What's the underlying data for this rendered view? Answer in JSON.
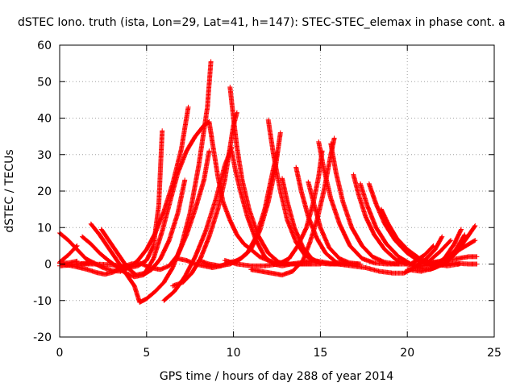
{
  "chart_data": {
    "type": "scatter",
    "title": "dSTEC Iono. truth (ista, Lon=29, Lat=41, h=147): STEC-STEC_elemax in phase cont. a",
    "xlabel": "GPS time / hours of day 288 of year 2014",
    "ylabel": "dSTEC  / TECUs",
    "xlim": [
      0,
      25
    ],
    "ylim": [
      -20,
      60
    ],
    "xticks": [
      0,
      5,
      10,
      15,
      20,
      25
    ],
    "yticks": [
      -20,
      -10,
      0,
      10,
      20,
      30,
      40,
      50,
      60
    ],
    "xtick_labels": [
      "0",
      "5",
      "10",
      "15",
      "20",
      "25"
    ],
    "ytick_labels": [
      "-20",
      "-10",
      "0",
      "10",
      "20",
      "30",
      "40",
      "50",
      "60"
    ],
    "grid": true,
    "marker": "+",
    "color": "#ff0000",
    "tracks": [
      [
        [
          0.0,
          8.5
        ],
        [
          0.5,
          6.5
        ],
        [
          1.0,
          4.0
        ],
        [
          1.5,
          1.5
        ],
        [
          2.0,
          0.2
        ],
        [
          2.5,
          -1.0
        ],
        [
          3.0,
          -1.8
        ],
        [
          3.5,
          -2.0
        ],
        [
          4.0,
          -1.0
        ],
        [
          4.5,
          1.0
        ],
        [
          5.0,
          4.0
        ],
        [
          5.5,
          8.5
        ],
        [
          6.0,
          14.5
        ],
        [
          6.5,
          22.0
        ],
        [
          7.0,
          31.5
        ],
        [
          7.4,
          43.0
        ]
      ],
      [
        [
          0.0,
          0.5
        ],
        [
          0.5,
          2.5
        ],
        [
          1.0,
          5.0
        ]
      ],
      [
        [
          0.0,
          -0.5
        ],
        [
          0.5,
          -0.3
        ],
        [
          1.0,
          0.0
        ],
        [
          1.5,
          0.2
        ],
        [
          2.0,
          0.3
        ]
      ],
      [
        [
          0.0,
          0.2
        ],
        [
          0.5,
          0.3
        ],
        [
          1.0,
          0.8
        ]
      ],
      [
        [
          1.3,
          7.5
        ],
        [
          1.8,
          5.5
        ],
        [
          2.3,
          3.0
        ],
        [
          2.8,
          1.0
        ],
        [
          3.3,
          -0.8
        ],
        [
          3.8,
          -2.5
        ],
        [
          4.3,
          -3.5
        ],
        [
          4.8,
          -3.0
        ],
        [
          5.3,
          -1.5
        ],
        [
          5.8,
          1.5
        ],
        [
          6.3,
          6.5
        ],
        [
          6.8,
          14.0
        ],
        [
          7.2,
          23.0
        ]
      ],
      [
        [
          1.8,
          11.0
        ],
        [
          2.3,
          8.0
        ],
        [
          2.8,
          4.5
        ],
        [
          3.3,
          1.0
        ],
        [
          3.8,
          -2.5
        ],
        [
          4.3,
          -6.0
        ],
        [
          4.6,
          -10.5
        ],
        [
          5.0,
          -9.5
        ],
        [
          5.5,
          -7.5
        ],
        [
          6.0,
          -5.0
        ],
        [
          6.5,
          -1.0
        ],
        [
          7.0,
          5.0
        ],
        [
          7.5,
          14.0
        ],
        [
          8.0,
          27.0
        ],
        [
          8.5,
          43.0
        ],
        [
          8.7,
          55.5
        ]
      ],
      [
        [
          0.2,
          0.0
        ],
        [
          1.0,
          -0.8
        ],
        [
          1.6,
          -1.5
        ],
        [
          2.1,
          -2.3
        ],
        [
          2.6,
          -2.8
        ],
        [
          3.1,
          -2.2
        ],
        [
          3.6,
          -0.8
        ],
        [
          4.1,
          0.0
        ],
        [
          4.6,
          0.3
        ],
        [
          5.2,
          -1.0
        ],
        [
          5.8,
          -1.5
        ],
        [
          6.3,
          -0.5
        ],
        [
          6.8,
          2.5
        ],
        [
          7.3,
          8.0
        ],
        [
          7.8,
          15.0
        ],
        [
          8.3,
          23.0
        ],
        [
          8.6,
          31.0
        ]
      ],
      [
        [
          2.4,
          9.5
        ],
        [
          2.9,
          6.0
        ],
        [
          3.4,
          2.5
        ],
        [
          3.9,
          -1.0
        ],
        [
          4.4,
          -3.0
        ],
        [
          4.9,
          -2.5
        ],
        [
          5.4,
          1.5
        ],
        [
          5.9,
          9.0
        ],
        [
          6.4,
          18.0
        ],
        [
          6.8,
          25.0
        ],
        [
          7.3,
          31.0
        ],
        [
          7.8,
          35.0
        ],
        [
          8.3,
          38.0
        ],
        [
          8.6,
          39.0
        ]
      ],
      [
        [
          1.0,
          0.0
        ],
        [
          2.0,
          0.0
        ],
        [
          3.0,
          -0.2
        ],
        [
          3.5,
          -0.5
        ],
        [
          4.0,
          -1.0
        ],
        [
          4.5,
          -0.5
        ],
        [
          5.0,
          1.0
        ],
        [
          5.4,
          5.0
        ],
        [
          5.7,
          16.0
        ],
        [
          5.9,
          36.5
        ]
      ],
      [
        [
          6.0,
          -10.0
        ],
        [
          6.6,
          -7.5
        ],
        [
          7.2,
          -3.5
        ],
        [
          7.8,
          2.0
        ],
        [
          8.4,
          9.0
        ],
        [
          9.0,
          18.0
        ],
        [
          9.5,
          27.0
        ],
        [
          9.9,
          32.0
        ]
      ],
      [
        [
          6.5,
          -6.0
        ],
        [
          7.1,
          -5.0
        ],
        [
          7.6,
          -2.5
        ],
        [
          8.1,
          1.5
        ],
        [
          8.6,
          7.5
        ],
        [
          9.1,
          15.0
        ],
        [
          9.5,
          23.0
        ],
        [
          9.8,
          32.0
        ],
        [
          10.0,
          38.0
        ],
        [
          10.2,
          41.5
        ]
      ],
      [
        [
          8.6,
          39.0
        ],
        [
          8.8,
          33.0
        ],
        [
          9.1,
          24.0
        ],
        [
          9.4,
          17.0
        ],
        [
          9.8,
          12.0
        ],
        [
          10.2,
          8.0
        ],
        [
          10.6,
          5.5
        ],
        [
          11.0,
          4.0
        ],
        [
          11.5,
          2.0
        ],
        [
          12.0,
          1.0
        ],
        [
          12.5,
          0.3
        ],
        [
          13.0,
          0.0
        ],
        [
          13.5,
          0.0
        ],
        [
          14.0,
          0.0
        ],
        [
          14.5,
          0.0
        ],
        [
          15.0,
          0.0
        ]
      ],
      [
        [
          9.8,
          48.5
        ],
        [
          10.0,
          40.0
        ],
        [
          10.2,
          32.0
        ],
        [
          10.5,
          23.0
        ],
        [
          10.9,
          15.0
        ],
        [
          11.4,
          8.0
        ],
        [
          12.0,
          3.0
        ],
        [
          12.6,
          0.5
        ],
        [
          13.2,
          0.0
        ],
        [
          13.8,
          0.0
        ],
        [
          14.4,
          0.0
        ]
      ],
      [
        [
          9.9,
          31.0
        ],
        [
          10.1,
          26.0
        ],
        [
          10.4,
          20.0
        ],
        [
          10.8,
          13.0
        ],
        [
          11.3,
          6.5
        ],
        [
          11.8,
          2.0
        ],
        [
          12.3,
          0.0
        ],
        [
          12.8,
          -0.5
        ],
        [
          13.3,
          0.0
        ],
        [
          14.0,
          0.5
        ],
        [
          14.6,
          1.0
        ]
      ],
      [
        [
          6.8,
          1.5
        ],
        [
          7.3,
          1.0
        ],
        [
          7.8,
          0.0
        ],
        [
          8.3,
          -0.5
        ],
        [
          8.8,
          -1.0
        ],
        [
          9.3,
          -0.5
        ],
        [
          9.8,
          0.5
        ],
        [
          10.3,
          1.0
        ],
        [
          10.8,
          3.0
        ],
        [
          11.3,
          7.5
        ],
        [
          11.8,
          15.0
        ],
        [
          12.2,
          24.0
        ],
        [
          12.5,
          30.5
        ]
      ],
      [
        [
          8.0,
          1.0
        ],
        [
          8.6,
          0.0
        ],
        [
          9.2,
          -0.5
        ],
        [
          9.8,
          0.0
        ],
        [
          10.4,
          1.5
        ],
        [
          11.0,
          4.0
        ],
        [
          11.5,
          9.0
        ],
        [
          12.0,
          17.0
        ],
        [
          12.4,
          26.0
        ],
        [
          12.7,
          36.0
        ]
      ],
      [
        [
          12.0,
          39.5
        ],
        [
          12.3,
          30.0
        ],
        [
          12.7,
          20.0
        ],
        [
          13.1,
          12.0
        ],
        [
          13.6,
          6.0
        ],
        [
          14.1,
          2.5
        ],
        [
          14.6,
          1.0
        ],
        [
          15.2,
          0.5
        ],
        [
          15.8,
          0.0
        ],
        [
          16.4,
          0.0
        ]
      ],
      [
        [
          12.8,
          23.5
        ],
        [
          13.1,
          17.0
        ],
        [
          13.5,
          10.0
        ],
        [
          14.0,
          4.5
        ],
        [
          14.5,
          1.5
        ],
        [
          15.0,
          0.2
        ],
        [
          15.5,
          0.0
        ],
        [
          16.0,
          0.0
        ]
      ],
      [
        [
          11.0,
          -1.5
        ],
        [
          11.6,
          -2.0
        ],
        [
          12.2,
          -2.5
        ],
        [
          12.8,
          -3.0
        ],
        [
          13.4,
          -2.0
        ],
        [
          14.0,
          1.0
        ],
        [
          14.4,
          6.0
        ],
        [
          14.8,
          12.0
        ],
        [
          15.2,
          20.0
        ],
        [
          15.6,
          30.0
        ],
        [
          15.8,
          34.5
        ]
      ],
      [
        [
          13.6,
          26.5
        ],
        [
          13.9,
          20.0
        ],
        [
          14.3,
          13.0
        ],
        [
          14.8,
          7.0
        ],
        [
          15.3,
          3.0
        ],
        [
          15.9,
          0.5
        ],
        [
          16.5,
          0.0
        ],
        [
          17.1,
          0.0
        ]
      ],
      [
        [
          14.3,
          22.5
        ],
        [
          14.6,
          17.0
        ],
        [
          15.0,
          10.0
        ],
        [
          15.5,
          4.5
        ],
        [
          16.1,
          1.5
        ],
        [
          16.7,
          0.3
        ],
        [
          17.3,
          0.0
        ]
      ],
      [
        [
          9.5,
          1.0
        ],
        [
          10.2,
          0.0
        ],
        [
          11.0,
          -0.5
        ],
        [
          11.8,
          -0.5
        ],
        [
          12.6,
          0.0
        ],
        [
          13.2,
          1.5
        ],
        [
          13.7,
          5.0
        ],
        [
          14.2,
          10.0
        ],
        [
          14.6,
          17.0
        ],
        [
          14.9,
          24.0
        ],
        [
          15.1,
          31.0
        ]
      ],
      [
        [
          14.9,
          33.5
        ],
        [
          15.2,
          26.0
        ],
        [
          15.6,
          18.0
        ],
        [
          16.1,
          11.0
        ],
        [
          16.7,
          5.0
        ],
        [
          17.4,
          1.5
        ],
        [
          18.1,
          0.3
        ],
        [
          18.8,
          0.0
        ],
        [
          19.5,
          0.0
        ]
      ],
      [
        [
          15.6,
          33.0
        ],
        [
          15.9,
          25.0
        ],
        [
          16.3,
          17.0
        ],
        [
          16.8,
          10.0
        ],
        [
          17.4,
          5.0
        ],
        [
          18.0,
          2.0
        ],
        [
          18.7,
          0.5
        ],
        [
          19.4,
          0.0
        ],
        [
          20.0,
          0.0
        ]
      ],
      [
        [
          16.9,
          24.5
        ],
        [
          17.2,
          19.0
        ],
        [
          17.6,
          13.0
        ],
        [
          18.1,
          8.0
        ],
        [
          18.7,
          4.0
        ],
        [
          19.4,
          1.0
        ],
        [
          20.1,
          -0.2
        ],
        [
          20.8,
          -0.5
        ]
      ],
      [
        [
          17.3,
          22.0
        ],
        [
          17.7,
          16.0
        ],
        [
          18.2,
          10.0
        ],
        [
          18.8,
          5.5
        ],
        [
          19.5,
          2.0
        ],
        [
          20.2,
          0.0
        ],
        [
          20.9,
          -0.5
        ],
        [
          21.4,
          0.0
        ]
      ],
      [
        [
          17.8,
          22.0
        ],
        [
          18.2,
          16.5
        ],
        [
          18.7,
          11.0
        ],
        [
          19.3,
          6.5
        ],
        [
          20.0,
          3.0
        ],
        [
          20.8,
          0.5
        ],
        [
          21.6,
          -0.5
        ],
        [
          22.3,
          0.0
        ]
      ],
      [
        [
          18.5,
          15.0
        ],
        [
          18.9,
          11.0
        ],
        [
          19.4,
          7.0
        ],
        [
          20.0,
          4.0
        ],
        [
          20.7,
          1.5
        ],
        [
          21.5,
          0.0
        ],
        [
          22.3,
          -0.5
        ],
        [
          23.0,
          0.0
        ]
      ],
      [
        [
          16.0,
          0.0
        ],
        [
          16.8,
          -0.5
        ],
        [
          17.6,
          -1.0
        ],
        [
          18.4,
          -2.0
        ],
        [
          19.2,
          -2.5
        ],
        [
          19.8,
          -2.5
        ],
        [
          20.4,
          -1.0
        ],
        [
          21.0,
          1.0
        ],
        [
          21.6,
          4.0
        ],
        [
          22.0,
          7.5
        ]
      ],
      [
        [
          20.0,
          -1.5
        ],
        [
          20.8,
          -2.0
        ],
        [
          21.6,
          -1.0
        ],
        [
          22.2,
          2.0
        ],
        [
          22.7,
          5.5
        ],
        [
          23.1,
          9.5
        ]
      ],
      [
        [
          20.5,
          -1.0
        ],
        [
          21.3,
          -1.5
        ],
        [
          22.1,
          0.0
        ],
        [
          22.8,
          3.0
        ],
        [
          23.4,
          7.0
        ],
        [
          23.9,
          10.5
        ]
      ],
      [
        [
          21.0,
          0.0
        ],
        [
          21.8,
          0.5
        ],
        [
          22.5,
          2.5
        ],
        [
          23.2,
          4.5
        ],
        [
          23.9,
          6.5
        ]
      ],
      [
        [
          21.5,
          0.5
        ],
        [
          22.2,
          1.0
        ],
        [
          22.9,
          1.5
        ],
        [
          23.5,
          2.0
        ],
        [
          24.0,
          2.0
        ]
      ],
      [
        [
          20.5,
          1.0
        ],
        [
          21.5,
          0.5
        ],
        [
          22.5,
          0.3
        ],
        [
          23.5,
          0.0
        ],
        [
          24.0,
          0.0
        ]
      ],
      [
        [
          20.2,
          0.0
        ],
        [
          21.0,
          2.5
        ],
        [
          21.5,
          5.0
        ]
      ],
      [
        [
          21.3,
          1.0
        ],
        [
          21.9,
          3.5
        ],
        [
          22.5,
          6.5
        ]
      ],
      [
        [
          22.2,
          1.0
        ],
        [
          22.8,
          4.0
        ],
        [
          23.3,
          8.0
        ]
      ]
    ]
  }
}
